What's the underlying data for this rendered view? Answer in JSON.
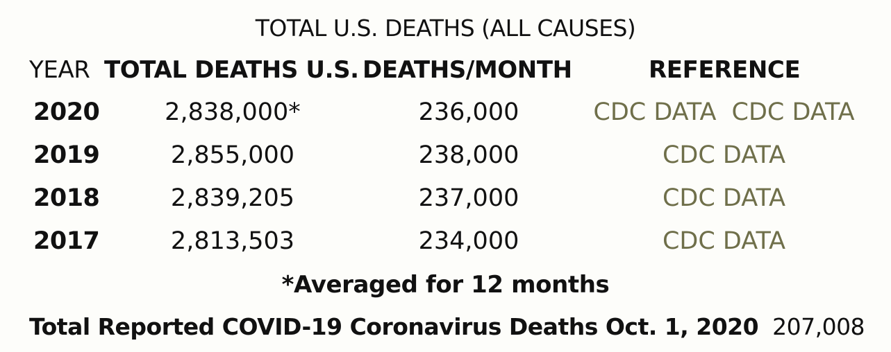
{
  "title": "TOTAL U.S. DEATHS (ALL CAUSES)",
  "header": {
    "year": "YEAR",
    "total": "TOTAL DEATHS U.S.",
    "per_month": "DEATHS/MONTH",
    "reference": "REFERENCE"
  },
  "rows": [
    {
      "year": "2020",
      "total": "2,838,000*",
      "per_month": "236,000",
      "refs": [
        "CDC DATA",
        "CDC DATA"
      ]
    },
    {
      "year": "2019",
      "total": "2,855,000",
      "per_month": "238,000",
      "refs": [
        "CDC DATA"
      ]
    },
    {
      "year": "2018",
      "total": "2,839,205",
      "per_month": "237,000",
      "refs": [
        "CDC DATA"
      ]
    },
    {
      "year": "2017",
      "total": "2,813,503",
      "per_month": "234,000",
      "refs": [
        "CDC DATA"
      ]
    }
  ],
  "footnote": "*Averaged for 12 months",
  "covid": {
    "label": "Total Reported COVID-19 Coronavirus Deaths Oct. 1, 2020",
    "value": "207,008"
  },
  "colors": {
    "link": "#6f6f4a",
    "text": "#111111",
    "background": "#fdfdfa"
  }
}
